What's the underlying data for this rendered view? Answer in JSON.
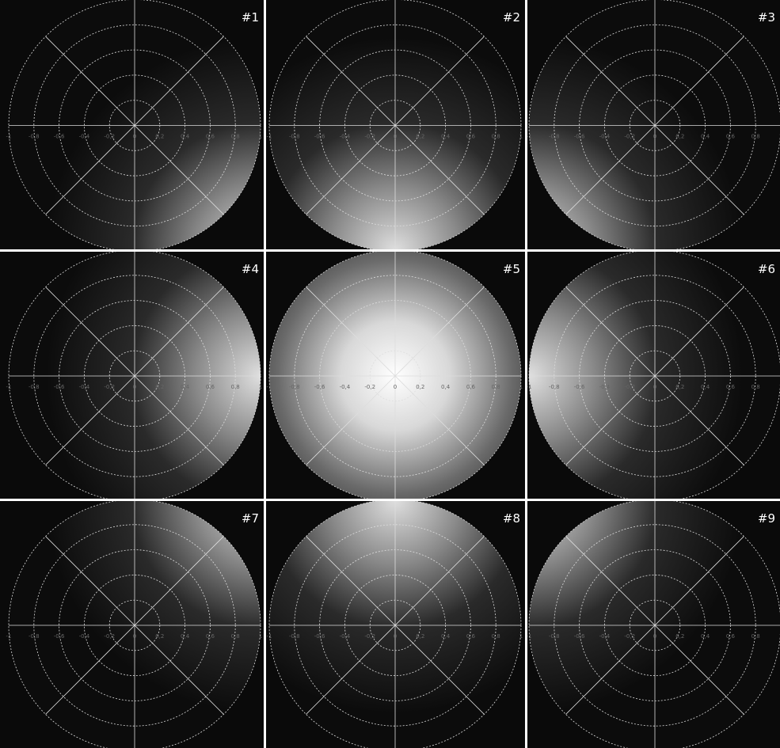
{
  "panels": [
    {
      "label": "#1"
    },
    {
      "label": "#2"
    },
    {
      "label": "#3"
    },
    {
      "label": "#4"
    },
    {
      "label": "#5"
    },
    {
      "label": "#6"
    },
    {
      "label": "#7"
    },
    {
      "label": "#8"
    },
    {
      "label": "#9"
    }
  ],
  "axis_labels": [
    "-1",
    "-0,8",
    "-0,6",
    "-0,4",
    "-0,2",
    "0",
    "0,2",
    "0,4",
    "0,6",
    "0,8",
    "1"
  ]
}
